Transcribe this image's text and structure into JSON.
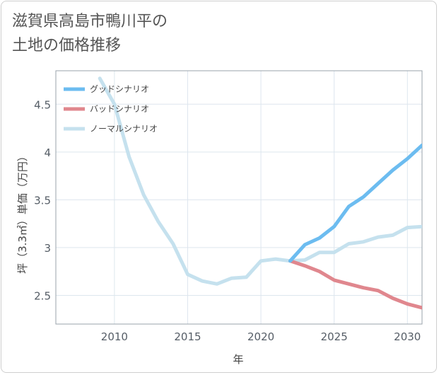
{
  "title": {
    "line1": "滋賀県高島市鴨川平の",
    "line2": "土地の価格推移"
  },
  "chart_data": {
    "type": "line",
    "xlabel": "年",
    "ylabel": "坪（3.3㎡）単価（万円）",
    "xlim": [
      2006,
      2031
    ],
    "ylim": [
      2.2,
      4.85
    ],
    "xticks": [
      2010,
      2015,
      2020,
      2025,
      2030
    ],
    "yticks": [
      2.5,
      3,
      3.5,
      4,
      4.5
    ],
    "grid": true,
    "legend_position": "top-left",
    "series": [
      {
        "name": "ノーマルシナリオ",
        "color": "#c5e1ee",
        "x": [
          2009,
          2010,
          2011,
          2012,
          2013,
          2014,
          2015,
          2016,
          2017,
          2018,
          2019,
          2020,
          2021,
          2022,
          2023,
          2024,
          2025,
          2026,
          2027,
          2028,
          2029,
          2030,
          2031
        ],
        "values": [
          4.77,
          4.5,
          3.95,
          3.55,
          3.27,
          3.04,
          2.72,
          2.65,
          2.62,
          2.68,
          2.69,
          2.86,
          2.88,
          2.86,
          2.87,
          2.95,
          2.95,
          3.04,
          3.06,
          3.11,
          3.13,
          3.21,
          3.22
        ]
      },
      {
        "name": "バッドシナリオ",
        "color": "#e0878e",
        "x": [
          2022,
          2023,
          2024,
          2025,
          2026,
          2027,
          2028,
          2029,
          2030,
          2031
        ],
        "values": [
          2.86,
          2.81,
          2.75,
          2.66,
          2.62,
          2.58,
          2.55,
          2.47,
          2.41,
          2.37
        ]
      },
      {
        "name": "グッドシナリオ",
        "color": "#6cbcf0",
        "x": [
          2022,
          2023,
          2024,
          2025,
          2026,
          2027,
          2028,
          2029,
          2030,
          2031
        ],
        "values": [
          2.86,
          3.03,
          3.1,
          3.22,
          3.43,
          3.53,
          3.67,
          3.81,
          3.93,
          4.07
        ]
      }
    ],
    "legend": [
      {
        "name": "グッドシナリオ",
        "color": "#6cbcf0"
      },
      {
        "name": "バッドシナリオ",
        "color": "#e0878e"
      },
      {
        "name": "ノーマルシナリオ",
        "color": "#c5e1ee"
      }
    ]
  }
}
